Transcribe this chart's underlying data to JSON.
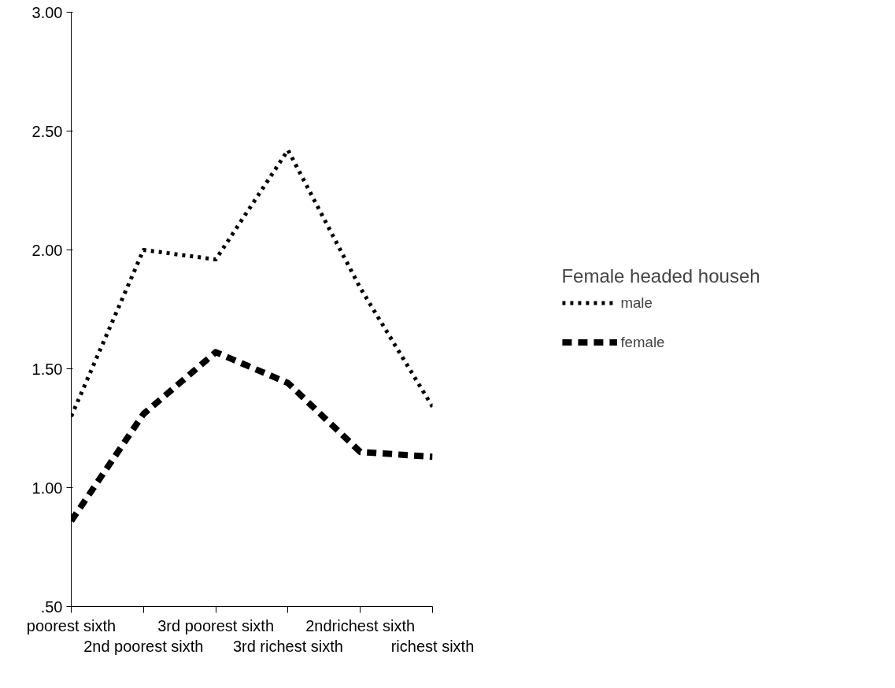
{
  "chart_data": {
    "type": "line",
    "categories": [
      "poorest sixth",
      "2nd poorest sixth",
      "3rd poorest sixth",
      "3rd richest sixth",
      "2ndrichest sixth",
      "richest sixth"
    ],
    "series": [
      {
        "name": "male",
        "color": "#000000",
        "line_style": "dotted",
        "values": [
          1.3,
          2.0,
          1.96,
          2.42,
          1.84,
          1.34
        ]
      },
      {
        "name": "female",
        "color": "#000000",
        "line_style": "dashed",
        "values": [
          0.86,
          1.31,
          1.57,
          1.44,
          1.15,
          1.13
        ]
      }
    ],
    "ylim": [
      0.5,
      3.0
    ],
    "yticks": [
      {
        "value": 0.5,
        "label": ".50"
      },
      {
        "value": 1.0,
        "label": "1.00"
      },
      {
        "value": 1.5,
        "label": "1.50"
      },
      {
        "value": 2.0,
        "label": "2.00"
      },
      {
        "value": 2.5,
        "label": "2.50"
      },
      {
        "value": 3.0,
        "label": "3.00"
      }
    ],
    "legend": "right",
    "legend_title": "Female headed househ",
    "grid": false,
    "marker": "none"
  }
}
